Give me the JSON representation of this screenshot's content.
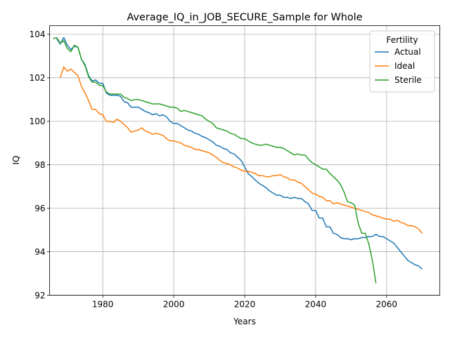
{
  "chart_data": {
    "type": "line",
    "title": "Average_IQ_in_JOB_SECURE_Sample for Whole",
    "xlabel": "Years",
    "ylabel": "IQ",
    "xlim": [
      1965,
      2075
    ],
    "ylim": [
      92,
      104.4
    ],
    "x_ticks": [
      1980,
      2000,
      2020,
      2040,
      2060
    ],
    "y_ticks": [
      92,
      94,
      96,
      98,
      100,
      102,
      104
    ],
    "grid": true,
    "legend": {
      "title": "Fertility",
      "position": "top-right"
    },
    "series": [
      {
        "name": "Actual",
        "color": "#1f77b4",
        "x": [
          1967,
          1968,
          1969,
          1970,
          1971,
          1972,
          1973,
          1974,
          1975,
          1976,
          1977,
          1978,
          1979,
          1980,
          1981,
          1982,
          1983,
          1984,
          1985,
          1986,
          1987,
          1988,
          1989,
          1990,
          1991,
          1992,
          1993,
          1994,
          1995,
          1996,
          1997,
          1998,
          1999,
          2000,
          2001,
          2002,
          2003,
          2004,
          2005,
          2006,
          2007,
          2008,
          2009,
          2010,
          2011,
          2012,
          2013,
          2014,
          2015,
          2016,
          2017,
          2018,
          2019,
          2020,
          2021,
          2022,
          2023,
          2024,
          2025,
          2026,
          2027,
          2028,
          2029,
          2030,
          2031,
          2032,
          2033,
          2034,
          2035,
          2036,
          2037,
          2038,
          2039,
          2040,
          2041,
          2042,
          2043,
          2044,
          2045,
          2046,
          2047,
          2048,
          2049,
          2050,
          2051,
          2052,
          2053,
          2054,
          2055,
          2056,
          2057,
          2058,
          2059,
          2060,
          2061,
          2062,
          2063,
          2064,
          2065,
          2066,
          2067,
          2068,
          2069,
          2070
        ],
        "values": [
          103.8,
          103.55,
          103.85,
          103.5,
          103.3,
          103.45,
          103.4,
          102.85,
          102.6,
          102.1,
          101.85,
          101.9,
          101.75,
          101.75,
          101.3,
          101.2,
          101.2,
          101.2,
          101.15,
          100.9,
          100.85,
          100.65,
          100.65,
          100.65,
          100.55,
          100.45,
          100.4,
          100.3,
          100.35,
          100.25,
          100.3,
          100.2,
          100.0,
          99.9,
          99.9,
          99.8,
          99.7,
          99.6,
          99.55,
          99.45,
          99.4,
          99.3,
          99.25,
          99.15,
          99.05,
          98.9,
          98.85,
          98.75,
          98.7,
          98.55,
          98.5,
          98.35,
          98.2,
          97.9,
          97.6,
          97.45,
          97.3,
          97.15,
          97.05,
          96.95,
          96.8,
          96.7,
          96.6,
          96.6,
          96.5,
          96.5,
          96.45,
          96.5,
          96.45,
          96.45,
          96.3,
          96.2,
          95.9,
          95.9,
          95.55,
          95.55,
          95.15,
          95.15,
          94.85,
          94.8,
          94.65,
          94.6,
          94.6,
          94.55,
          94.6,
          94.6,
          94.65,
          94.65,
          94.7,
          94.7,
          94.8,
          94.7,
          94.7,
          94.6,
          94.5,
          94.4,
          94.2,
          94.0,
          93.8,
          93.6,
          93.5,
          93.4,
          93.35,
          93.2
        ]
      },
      {
        "name": "Ideal",
        "color": "#ff7f0e",
        "x": [
          1968,
          1969,
          1970,
          1971,
          1972,
          1973,
          1974,
          1975,
          1976,
          1977,
          1978,
          1979,
          1980,
          1981,
          1982,
          1983,
          1984,
          1985,
          1986,
          1987,
          1988,
          1989,
          1990,
          1991,
          1992,
          1993,
          1994,
          1995,
          1996,
          1997,
          1998,
          1999,
          2000,
          2001,
          2002,
          2003,
          2004,
          2005,
          2006,
          2007,
          2008,
          2009,
          2010,
          2011,
          2012,
          2013,
          2014,
          2015,
          2016,
          2017,
          2018,
          2019,
          2020,
          2021,
          2022,
          2023,
          2024,
          2025,
          2026,
          2027,
          2028,
          2029,
          2030,
          2031,
          2032,
          2033,
          2034,
          2035,
          2036,
          2037,
          2038,
          2039,
          2040,
          2041,
          2042,
          2043,
          2044,
          2045,
          2046,
          2047,
          2048,
          2049,
          2050,
          2051,
          2052,
          2053,
          2054,
          2055,
          2056,
          2057,
          2058,
          2059,
          2060,
          2061,
          2062,
          2063,
          2064,
          2065,
          2066,
          2067,
          2068,
          2069,
          2070
        ],
        "values": [
          102.0,
          102.5,
          102.3,
          102.4,
          102.25,
          102.1,
          101.6,
          101.3,
          100.95,
          100.55,
          100.55,
          100.35,
          100.3,
          100.0,
          100.0,
          99.95,
          100.1,
          100.0,
          99.85,
          99.7,
          99.5,
          99.55,
          99.6,
          99.7,
          99.55,
          99.5,
          99.4,
          99.45,
          99.4,
          99.35,
          99.2,
          99.1,
          99.1,
          99.05,
          99.0,
          98.9,
          98.85,
          98.8,
          98.7,
          98.7,
          98.65,
          98.6,
          98.55,
          98.45,
          98.35,
          98.2,
          98.1,
          98.05,
          98.0,
          97.9,
          97.85,
          97.75,
          97.7,
          97.7,
          97.65,
          97.6,
          97.5,
          97.5,
          97.45,
          97.45,
          97.5,
          97.5,
          97.55,
          97.45,
          97.4,
          97.3,
          97.3,
          97.2,
          97.15,
          97.0,
          96.85,
          96.7,
          96.65,
          96.55,
          96.5,
          96.35,
          96.35,
          96.2,
          96.25,
          96.2,
          96.15,
          96.1,
          96.05,
          96.0,
          95.95,
          95.9,
          95.85,
          95.8,
          95.7,
          95.65,
          95.6,
          95.55,
          95.5,
          95.5,
          95.4,
          95.45,
          95.35,
          95.3,
          95.2,
          95.2,
          95.15,
          95.05,
          94.85
        ]
      },
      {
        "name": "Sterile",
        "color": "#2ca02c",
        "x": [
          1966,
          1967,
          1968,
          1969,
          1970,
          1971,
          1972,
          1973,
          1974,
          1975,
          1976,
          1977,
          1978,
          1979,
          1980,
          1981,
          1982,
          1983,
          1984,
          1985,
          1986,
          1987,
          1988,
          1989,
          1990,
          1991,
          1992,
          1993,
          1994,
          1995,
          1996,
          1997,
          1998,
          1999,
          2000,
          2001,
          2002,
          2003,
          2004,
          2005,
          2006,
          2007,
          2008,
          2009,
          2010,
          2011,
          2012,
          2013,
          2014,
          2015,
          2016,
          2017,
          2018,
          2019,
          2020,
          2021,
          2022,
          2023,
          2024,
          2025,
          2026,
          2027,
          2028,
          2029,
          2030,
          2031,
          2032,
          2033,
          2034,
          2035,
          2036,
          2037,
          2038,
          2039,
          2040,
          2041,
          2042,
          2043,
          2044,
          2045,
          2046,
          2047,
          2048,
          2049,
          2050,
          2051,
          2052,
          2053,
          2054,
          2055,
          2056,
          2057
        ],
        "values": [
          103.8,
          103.85,
          103.6,
          103.7,
          103.35,
          103.2,
          103.5,
          103.4,
          102.85,
          102.55,
          102.05,
          101.8,
          101.8,
          101.65,
          101.65,
          101.35,
          101.25,
          101.25,
          101.25,
          101.25,
          101.1,
          101.05,
          100.95,
          101.0,
          101.0,
          100.95,
          100.9,
          100.85,
          100.8,
          100.8,
          100.8,
          100.75,
          100.7,
          100.65,
          100.65,
          100.6,
          100.45,
          100.5,
          100.45,
          100.4,
          100.35,
          100.3,
          100.25,
          100.1,
          100.0,
          99.9,
          99.7,
          99.65,
          99.6,
          99.55,
          99.45,
          99.4,
          99.3,
          99.2,
          99.2,
          99.1,
          99.0,
          98.95,
          98.9,
          98.9,
          98.95,
          98.9,
          98.85,
          98.8,
          98.8,
          98.75,
          98.65,
          98.55,
          98.45,
          98.5,
          98.45,
          98.45,
          98.25,
          98.1,
          98.0,
          97.9,
          97.8,
          97.8,
          97.6,
          97.45,
          97.3,
          97.1,
          96.75,
          96.3,
          96.25,
          96.15,
          95.3,
          94.85,
          94.85,
          94.35,
          93.6,
          92.55
        ]
      }
    ]
  }
}
